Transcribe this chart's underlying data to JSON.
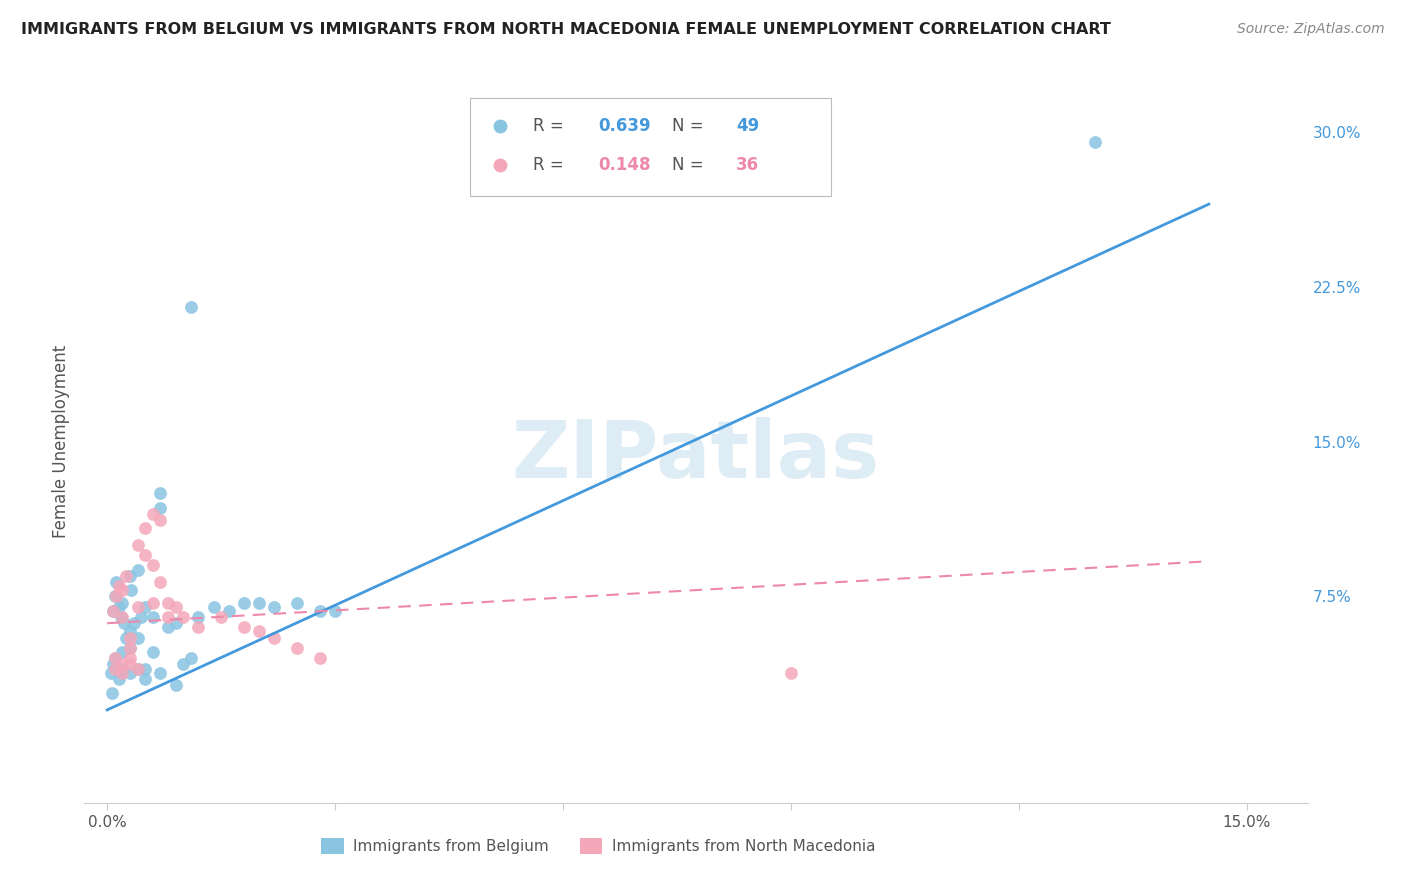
{
  "title": "IMMIGRANTS FROM BELGIUM VS IMMIGRANTS FROM NORTH MACEDONIA FEMALE UNEMPLOYMENT CORRELATION CHART",
  "source_text": "Source: ZipAtlas.com",
  "ylabel": "Female Unemployment",
  "watermark": "ZIPatlas",
  "color_belgium": "#89c4e1",
  "color_macedonia": "#f4a7b9",
  "color_blue_line": "#4499dd",
  "color_pink_line": "#ee88aa",
  "color_right_axis": "#4499dd",
  "legend_r1_val": "0.639",
  "legend_n1_val": "49",
  "legend_r2_val": "0.148",
  "legend_n2_val": "36",
  "bel_x": [
    0.0008,
    0.001,
    0.0012,
    0.0015,
    0.0018,
    0.002,
    0.002,
    0.0022,
    0.0025,
    0.003,
    0.003,
    0.003,
    0.0032,
    0.0035,
    0.004,
    0.004,
    0.0045,
    0.005,
    0.005,
    0.006,
    0.006,
    0.007,
    0.007,
    0.008,
    0.009,
    0.01,
    0.011,
    0.012,
    0.014,
    0.016,
    0.018,
    0.02,
    0.022,
    0.025,
    0.028,
    0.03,
    0.0005,
    0.0008,
    0.001,
    0.0015,
    0.002,
    0.003,
    0.004,
    0.005,
    0.007,
    0.009,
    0.011,
    0.13,
    0.0006
  ],
  "bel_y": [
    0.068,
    0.075,
    0.082,
    0.07,
    0.065,
    0.072,
    0.048,
    0.062,
    0.055,
    0.085,
    0.058,
    0.05,
    0.078,
    0.062,
    0.088,
    0.055,
    0.065,
    0.07,
    0.04,
    0.065,
    0.048,
    0.125,
    0.118,
    0.06,
    0.062,
    0.042,
    0.045,
    0.065,
    0.07,
    0.068,
    0.072,
    0.072,
    0.07,
    0.072,
    0.068,
    0.068,
    0.038,
    0.042,
    0.045,
    0.035,
    0.04,
    0.038,
    0.04,
    0.035,
    0.038,
    0.032,
    0.215,
    0.295,
    0.028
  ],
  "mac_x": [
    0.0008,
    0.001,
    0.0012,
    0.0015,
    0.002,
    0.002,
    0.0025,
    0.003,
    0.003,
    0.004,
    0.004,
    0.005,
    0.006,
    0.006,
    0.007,
    0.008,
    0.01,
    0.012,
    0.015,
    0.018,
    0.02,
    0.022,
    0.025,
    0.028,
    0.002,
    0.003,
    0.004,
    0.005,
    0.006,
    0.007,
    0.008,
    0.009,
    0.09,
    0.001,
    0.002,
    0.003
  ],
  "mac_y": [
    0.068,
    0.045,
    0.075,
    0.08,
    0.078,
    0.065,
    0.085,
    0.05,
    0.055,
    0.07,
    0.04,
    0.108,
    0.115,
    0.072,
    0.112,
    0.065,
    0.065,
    0.06,
    0.065,
    0.06,
    0.058,
    0.055,
    0.05,
    0.045,
    0.042,
    0.045,
    0.1,
    0.095,
    0.09,
    0.082,
    0.072,
    0.07,
    0.038,
    0.04,
    0.038,
    0.042
  ],
  "blue_line_x": [
    0.0,
    0.145
  ],
  "blue_line_y": [
    0.02,
    0.265
  ],
  "pink_line_x": [
    0.0,
    0.145
  ],
  "pink_line_y": [
    0.062,
    0.092
  ],
  "xlim": [
    -0.003,
    0.158
  ],
  "ylim": [
    -0.025,
    0.325
  ],
  "xtick_positions": [
    0.0,
    0.03,
    0.06,
    0.09,
    0.12,
    0.15
  ],
  "xtick_labels": [
    "0.0%",
    "",
    "",
    "",
    "",
    "15.0%"
  ],
  "right_ytick_positions": [
    0.075,
    0.15,
    0.225,
    0.3
  ],
  "right_ytick_labels": [
    "7.5%",
    "15.0%",
    "22.5%",
    "30.0%"
  ]
}
